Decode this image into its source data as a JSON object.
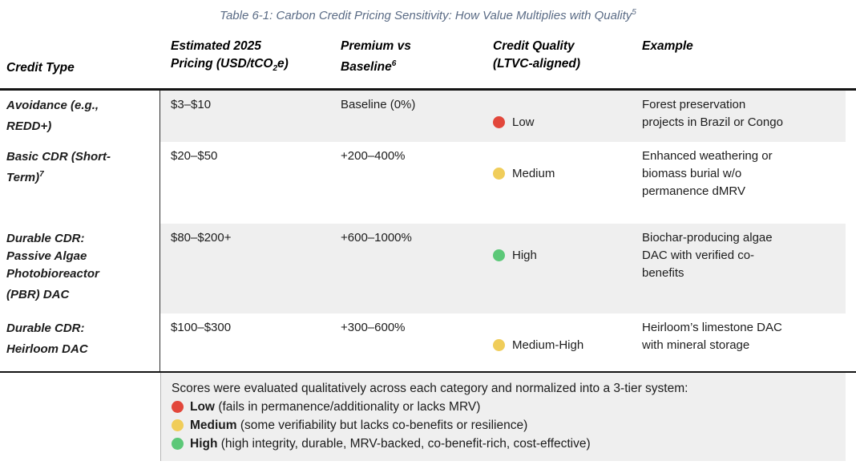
{
  "title": {
    "text": "Table 6-1: Carbon Credit Pricing Sensitivity: How Value Multiplies with Quality",
    "superscript": "5"
  },
  "columns": {
    "credit_type": "Credit Type",
    "pricing_line1": "Estimated 2025",
    "pricing_line2_pre": "Pricing (USD/tCO",
    "pricing_sub": "2",
    "pricing_line2_post": "e)",
    "premium_line1": "Premium vs",
    "premium_line2": "Baseline",
    "premium_sup": "6",
    "quality_line1": "Credit Quality",
    "quality_line2": "(LTVC-aligned)",
    "example": "Example"
  },
  "rows": [
    {
      "credit_type": "Avoidance (e.g.,\nREDD+)",
      "credit_type_sup": "",
      "pricing": "$3–$10",
      "premium": "Baseline (0%)",
      "quality": "Low",
      "quality_color": "#e2473b",
      "example": "Forest preservation\nprojects in Brazil or Congo"
    },
    {
      "credit_type": "Basic CDR (Short-\nTerm)",
      "credit_type_sup": "7",
      "pricing": "$20–$50",
      "premium": "+200–400%",
      "quality": "Medium",
      "quality_color": "#f0cd5a",
      "example": "Enhanced weathering or\nbiomass burial w/o\npermanence dMRV"
    },
    {
      "credit_type": "Durable CDR:\nPassive Algae\nPhotobioreactor\n(PBR) DAC",
      "credit_type_sup": "",
      "pricing": "$80–$200+",
      "premium": "+600–1000%",
      "quality": "High",
      "quality_color": "#5cc878",
      "example": "Biochar-producing algae\nDAC with verified co-\nbenefits"
    },
    {
      "credit_type": "Durable CDR:\nHeirloom DAC",
      "credit_type_sup": "",
      "pricing": "$100–$300",
      "premium": "+300–600%",
      "quality": "Medium-High",
      "quality_color": "#f0cd5a",
      "example": "Heirloom’s limestone DAC\nwith mineral storage"
    }
  ],
  "legend": {
    "intro": "Scores were evaluated qualitatively across each category and normalized into a 3-tier system:",
    "items": [
      {
        "label": "Low",
        "desc": "(fails in permanence/additionality or lacks MRV)",
        "color": "#e2473b"
      },
      {
        "label": "Medium",
        "desc": "(some verifiability but lacks co-benefits or resilience)",
        "color": "#f0cd5a"
      },
      {
        "label": "High",
        "desc": "(high integrity, durable, MRV-backed, co-benefit-rich, cost-effective)",
        "color": "#5cc878"
      }
    ]
  },
  "colors": {
    "row_shading": "#efefef",
    "title_text": "#5a6b85",
    "status_low": "#e2473b",
    "status_medium": "#f0cd5a",
    "status_high": "#5cc878"
  }
}
